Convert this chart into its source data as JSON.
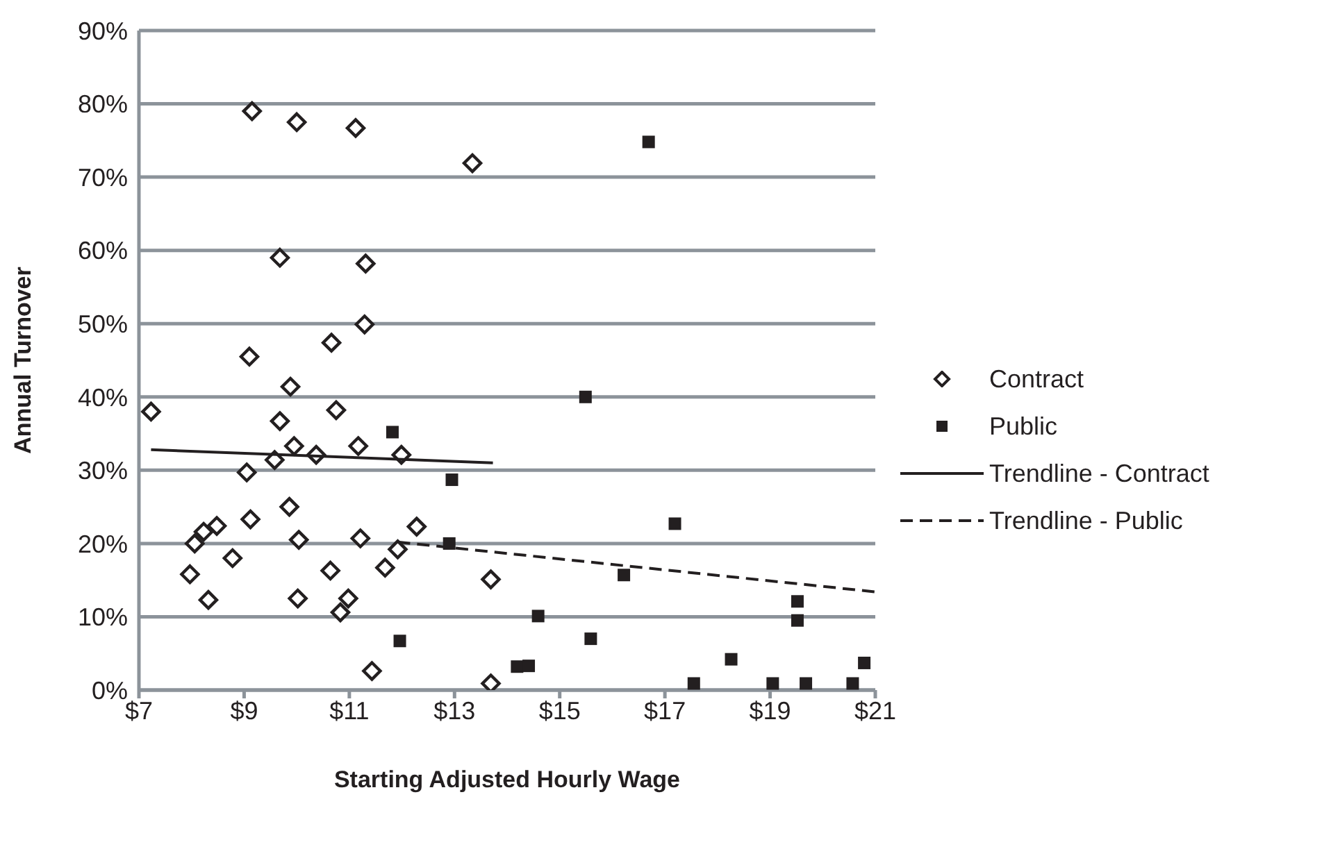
{
  "chart_data": {
    "type": "scatter",
    "xlabel": "Starting Adjusted Hourly Wage",
    "ylabel": "Annual Turnover",
    "xlim": [
      7,
      21
    ],
    "xticks": [
      {
        "value": 7,
        "label": "$7"
      },
      {
        "value": 9,
        "label": "$9"
      },
      {
        "value": 11,
        "label": "$11"
      },
      {
        "value": 13,
        "label": "$13"
      },
      {
        "value": 15,
        "label": "$15"
      },
      {
        "value": 17,
        "label": "$17"
      },
      {
        "value": 19,
        "label": "$19"
      },
      {
        "value": 21,
        "label": "$21"
      }
    ],
    "ylim": [
      0,
      90
    ],
    "yticks": [
      {
        "value": 0,
        "label": "0%"
      },
      {
        "value": 10,
        "label": "10%"
      },
      {
        "value": 20,
        "label": "20%"
      },
      {
        "value": 30,
        "label": "30%"
      },
      {
        "value": 40,
        "label": "40%"
      },
      {
        "value": 50,
        "label": "50%"
      },
      {
        "value": 60,
        "label": "60%"
      },
      {
        "value": 70,
        "label": "70%"
      },
      {
        "value": 80,
        "label": "80%"
      },
      {
        "value": 90,
        "label": "90%"
      }
    ],
    "grid": "y",
    "legend": "right",
    "series": [
      {
        "name": "Contract",
        "marker": "diamond",
        "color": "#231f20",
        "x": [
          7.23,
          9.15,
          10.0,
          11.12,
          13.34,
          9.68,
          11.31,
          11.29,
          10.66,
          9.1,
          9.88,
          10.75,
          9.68,
          9.95,
          10.37,
          11.17,
          11.99,
          9.58,
          9.05,
          9.86,
          9.12,
          8.48,
          8.23,
          8.06,
          10.04,
          11.21,
          12.28,
          11.92,
          8.78,
          7.97,
          10.64,
          11.68,
          13.69,
          8.32,
          10.02,
          10.98,
          10.83,
          11.43,
          13.69
        ],
        "values": [
          38,
          79,
          77.5,
          76.7,
          71.9,
          59,
          58.2,
          49.9,
          47.4,
          45.5,
          41.4,
          38.2,
          36.7,
          33.3,
          32.1,
          33.3,
          32.1,
          31.4,
          29.7,
          25,
          23.3,
          22.4,
          21.6,
          20,
          20.5,
          20.7,
          22.3,
          19.2,
          18,
          15.8,
          16.3,
          16.7,
          15.1,
          12.3,
          12.5,
          12.5,
          10.6,
          2.6,
          0.9
        ]
      },
      {
        "name": "Public",
        "marker": "square",
        "color": "#231f20",
        "x": [
          11.82,
          12.95,
          12.9,
          11.96,
          14.19,
          14.41,
          16.69,
          15.49,
          17.19,
          16.22,
          14.59,
          15.59,
          19.52,
          19.52,
          18.26,
          20.79,
          17.55,
          19.05,
          19.68,
          20.57
        ],
        "values": [
          35.2,
          28.7,
          20,
          6.7,
          3.2,
          3.3,
          74.8,
          40,
          22.7,
          15.7,
          10.1,
          7,
          12.1,
          9.5,
          4.2,
          3.7,
          0.9,
          0.9,
          0.9,
          0.9
        ]
      },
      {
        "name": "Trendline - Contract",
        "type": "line",
        "line_style": "solid",
        "color": "#231f20",
        "x": [
          7.23,
          13.73
        ],
        "values": [
          32.8,
          31
        ]
      },
      {
        "name": "Trendline - Public",
        "type": "line",
        "line_style": "dashed",
        "color": "#231f20",
        "x": [
          11.92,
          21
        ],
        "values": [
          20.2,
          13.4
        ]
      }
    ]
  }
}
